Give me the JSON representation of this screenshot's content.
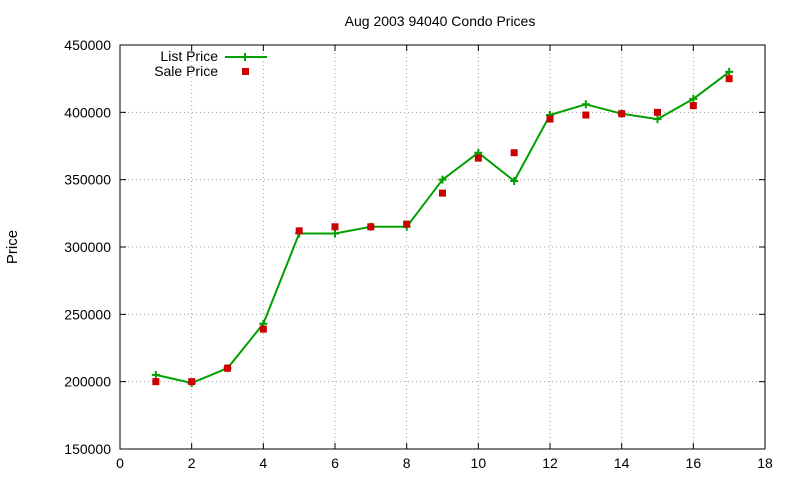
{
  "chart_data": {
    "type": "line",
    "title": "Aug 2003 94040 Condo Prices",
    "xlabel": "",
    "ylabel": "Price",
    "xlim": [
      0,
      18
    ],
    "ylim": [
      150000,
      450000
    ],
    "xticks": [
      0,
      2,
      4,
      6,
      8,
      10,
      12,
      14,
      16,
      18
    ],
    "yticks": [
      150000,
      200000,
      250000,
      300000,
      350000,
      400000,
      450000
    ],
    "grid": true,
    "legend_position": "top-left",
    "series": [
      {
        "name": "List Price",
        "style": "line-plus",
        "color": "#00a000",
        "x": [
          1,
          2,
          3,
          4,
          5,
          6,
          7,
          8,
          9,
          10,
          11,
          12,
          13,
          14,
          15,
          16,
          17
        ],
        "y": [
          205000,
          199000,
          210000,
          243000,
          310000,
          310000,
          315000,
          315000,
          350000,
          370000,
          349000,
          398000,
          406000,
          399000,
          395000,
          410000,
          430000
        ]
      },
      {
        "name": "Sale Price",
        "style": "square-points",
        "color": "#cc0000",
        "x": [
          1,
          2,
          3,
          4,
          5,
          6,
          7,
          8,
          9,
          10,
          11,
          12,
          13,
          14,
          15,
          16,
          17
        ],
        "y": [
          200000,
          200000,
          210000,
          239000,
          312000,
          315000,
          315000,
          317000,
          340000,
          366000,
          370000,
          395000,
          398000,
          399000,
          400000,
          405000,
          425000
        ]
      }
    ]
  }
}
